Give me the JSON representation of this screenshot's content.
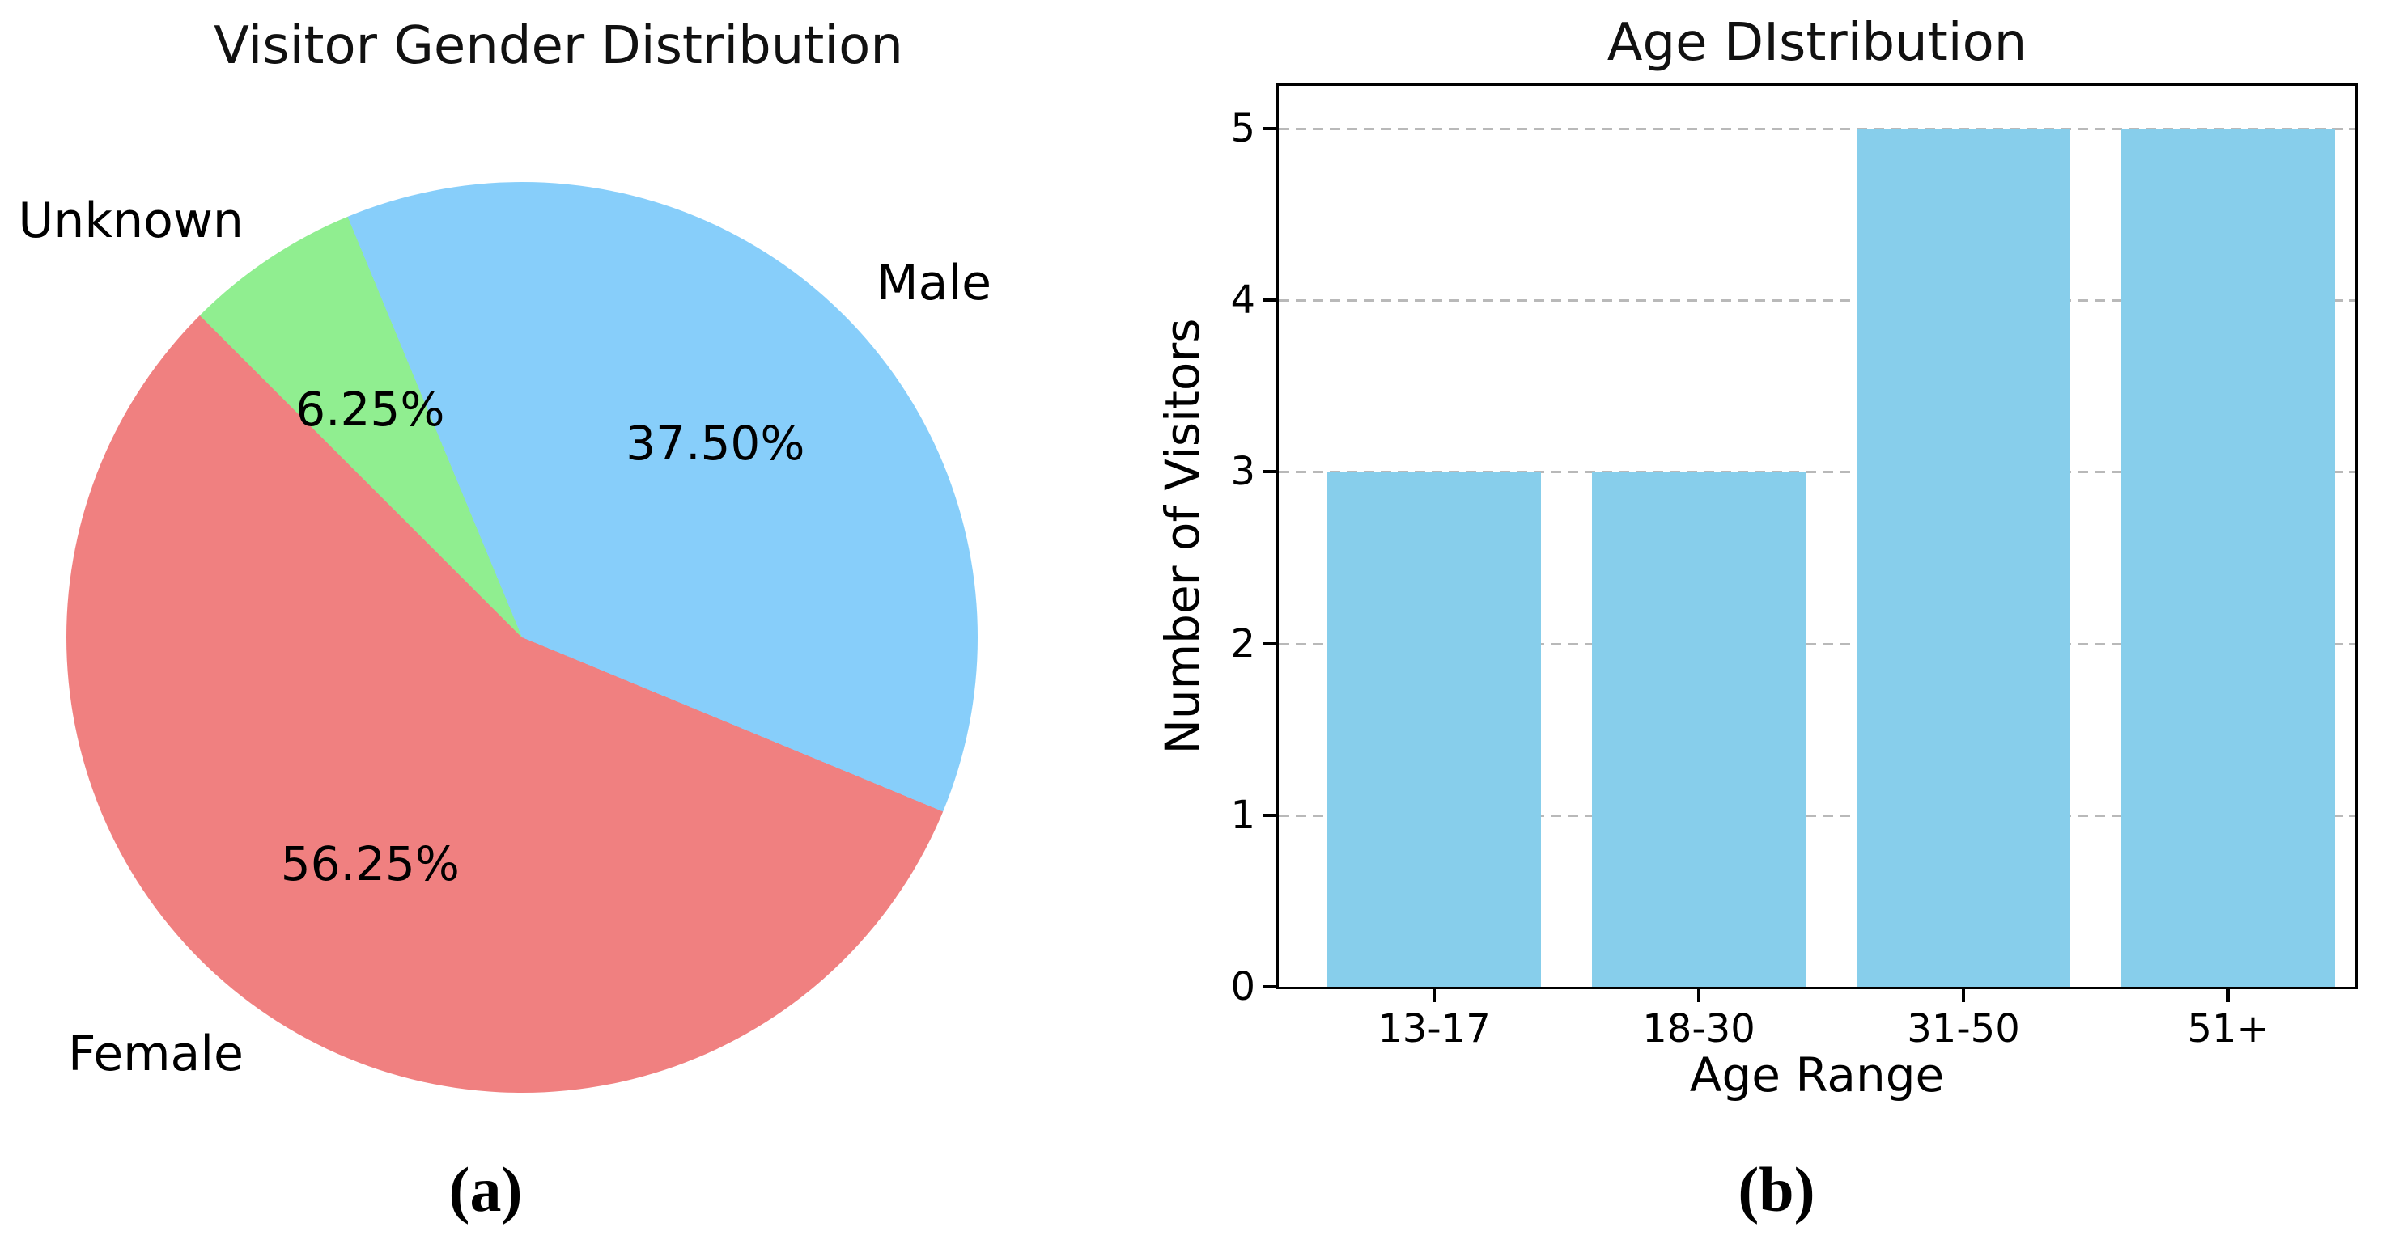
{
  "figure": {
    "panel_a": {
      "caption": "(a)"
    },
    "panel_b": {
      "caption": "(b)"
    }
  },
  "colors": {
    "pie_male": "#87CEFA",
    "pie_unknown": "#90EE90",
    "pie_female": "#F08080",
    "bar_fill": "#87CEEB",
    "grid": "#b9b9b9",
    "spine": "#000000",
    "text": "#000000"
  },
  "chart_data": [
    {
      "type": "pie",
      "title": "Visitor Gender Distribution",
      "labels": [
        "Male",
        "Unknown",
        "Female"
      ],
      "values": [
        37.5,
        6.25,
        56.25
      ],
      "pct_labels": [
        "37.50%",
        "6.25%",
        "56.25%"
      ],
      "colors": [
        "#87CEFA",
        "#90EE90",
        "#F08080"
      ],
      "start_angle_deg": -22.5,
      "counterclockwise": true,
      "legend": "none"
    },
    {
      "type": "bar",
      "title": "Age DIstribution",
      "categories": [
        "13-17",
        "18-30",
        "31-50",
        "51+"
      ],
      "values": [
        3,
        3,
        5,
        5
      ],
      "xlabel": "Age Range",
      "ylabel": "Number of Visitors",
      "ytick_labels": [
        "0",
        "1",
        "2",
        "3",
        "4",
        "5"
      ],
      "yticks": [
        0,
        1,
        2,
        3,
        4,
        5
      ],
      "ylim": [
        0,
        5.25
      ],
      "bar_color": "#87CEEB",
      "grid": "horizontal dashed",
      "legend": "none"
    }
  ]
}
